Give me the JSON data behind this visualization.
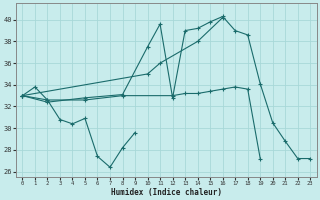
{
  "xlabel": "Humidex (Indice chaleur)",
  "bg_color": "#c8ecec",
  "line_color": "#1a6b6b",
  "grid_color": "#a8d8d8",
  "xlim": [
    -0.5,
    23.5
  ],
  "ylim": [
    25.5,
    41.5
  ],
  "yticks": [
    26,
    28,
    30,
    32,
    34,
    36,
    38,
    40
  ],
  "xticks": [
    0,
    1,
    2,
    3,
    4,
    5,
    6,
    7,
    8,
    9,
    10,
    11,
    12,
    13,
    14,
    15,
    16,
    17,
    18,
    19,
    20,
    21,
    22,
    23
  ],
  "series": [
    {
      "x": [
        0,
        1,
        2,
        3,
        4,
        5,
        6,
        7,
        8,
        9
      ],
      "y": [
        33.0,
        33.8,
        32.6,
        30.8,
        30.4,
        30.9,
        27.4,
        26.4,
        28.2,
        29.6
      ]
    },
    {
      "x": [
        0,
        2,
        5,
        8,
        10,
        11,
        12,
        13,
        14,
        15,
        16,
        17,
        18,
        19,
        20,
        21,
        22,
        23
      ],
      "y": [
        33.0,
        32.4,
        32.8,
        33.1,
        37.5,
        39.6,
        32.8,
        39.0,
        39.2,
        39.8,
        40.3,
        39.0,
        38.6,
        34.1,
        30.5,
        28.8,
        27.2,
        27.2
      ]
    },
    {
      "x": [
        0,
        2,
        5,
        8,
        12,
        13,
        14,
        15,
        16,
        17,
        18,
        19
      ],
      "y": [
        33.0,
        32.6,
        32.6,
        33.0,
        33.0,
        33.2,
        33.2,
        33.4,
        33.6,
        33.8,
        33.6,
        27.2
      ]
    },
    {
      "x": [
        0,
        10,
        11,
        14,
        16
      ],
      "y": [
        33.0,
        35.0,
        36.0,
        38.0,
        40.2
      ]
    }
  ]
}
